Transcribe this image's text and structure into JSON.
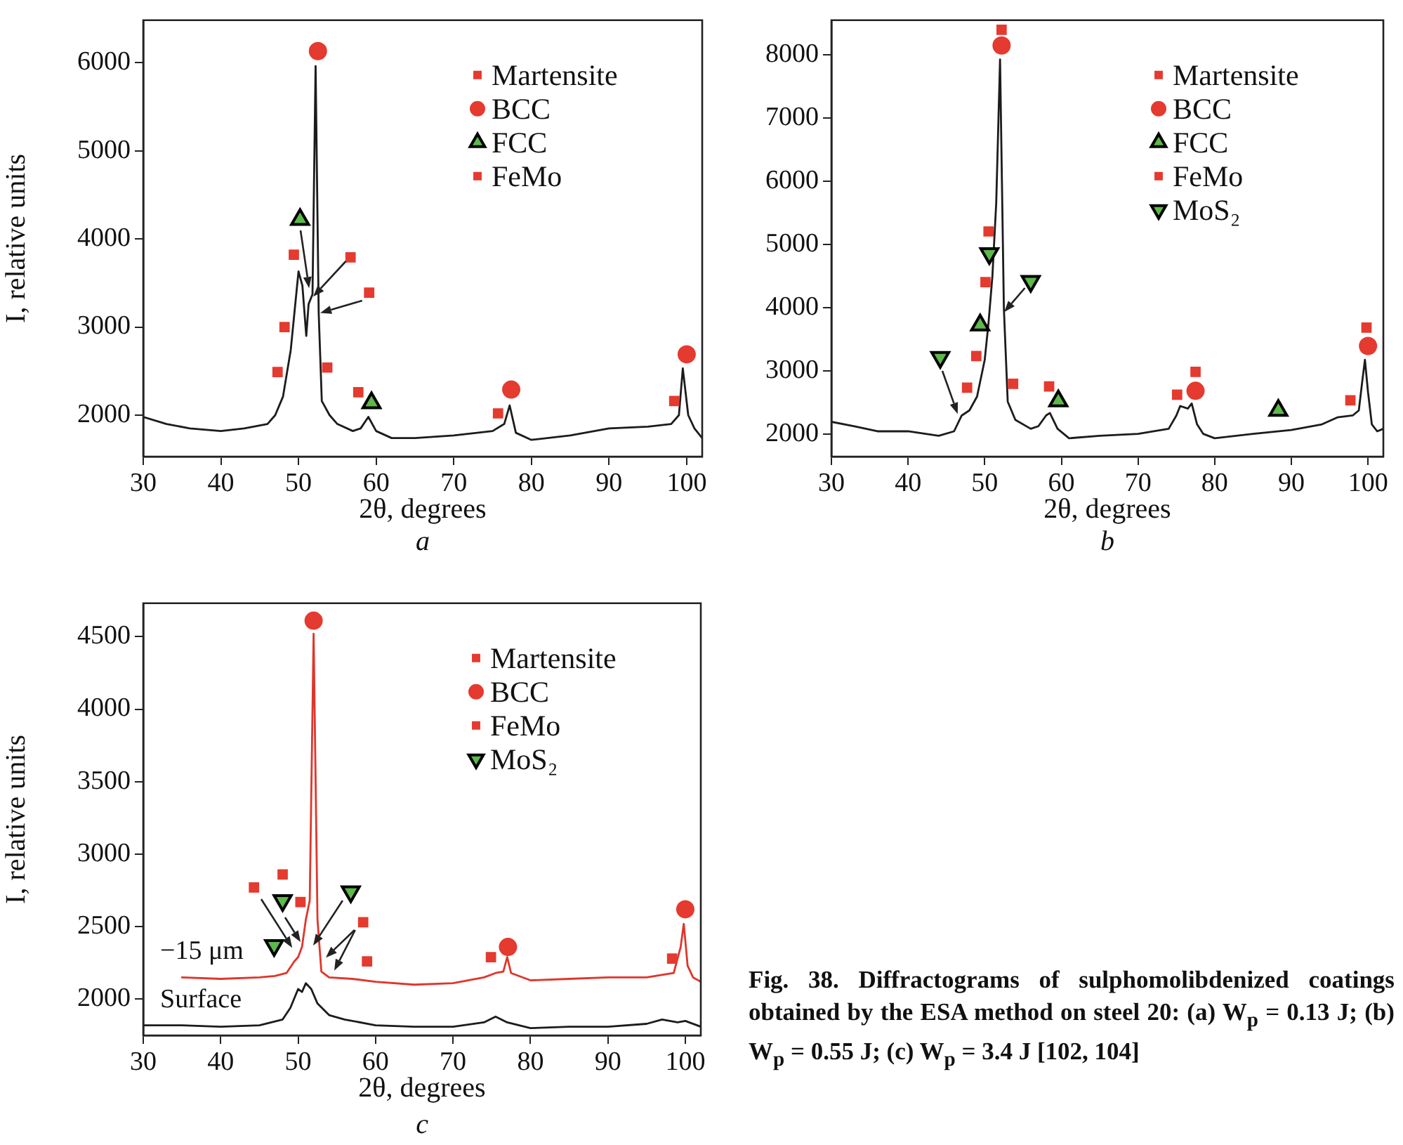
{
  "chart_data": [
    {
      "type": "line",
      "xlabel": "2θ, degrees",
      "ylabel": "I, relative units",
      "annotations": [
        "a"
      ],
      "xlim": [
        30,
        102
      ],
      "xticks": [
        30,
        40,
        50,
        60,
        70,
        80,
        90,
        100
      ],
      "ylim": [
        1530,
        6480
      ],
      "yticks": [
        2000,
        3000,
        4000,
        5000,
        6000
      ],
      "legend": "top right",
      "series": [
        {
          "type": "line",
          "color": "#1c1c1c",
          "x": [
            30,
            33,
            36,
            40,
            43,
            46,
            47,
            48,
            49,
            50,
            50.5,
            51,
            51.3,
            51.8,
            52.2,
            52.6,
            53,
            54,
            55,
            57,
            58,
            59,
            60,
            62,
            65,
            70,
            75,
            76.5,
            77.2,
            78,
            80,
            85,
            90,
            95,
            98,
            99,
            99.5,
            100.2,
            101,
            102
          ],
          "values": [
            1980,
            1900,
            1850,
            1820,
            1850,
            1900,
            2000,
            2210,
            2740,
            3630,
            3470,
            2900,
            3260,
            3370,
            5960,
            3160,
            2160,
            2000,
            1900,
            1820,
            1850,
            1980,
            1820,
            1740,
            1740,
            1770,
            1820,
            1900,
            2110,
            1800,
            1720,
            1770,
            1850,
            1870,
            1900,
            2000,
            2530,
            2000,
            1850,
            1740
          ]
        },
        {
          "type": "scatter",
          "name": "Martensite",
          "color": "#e53a2f",
          "marker": "square",
          "x": [
            56.7,
            75.7,
            98.4
          ],
          "values": [
            3790,
            2020,
            2160
          ]
        },
        {
          "type": "scatter",
          "name": "BCC",
          "color": "#e53a2f",
          "marker": "circle",
          "x": [
            52.5,
            77.4,
            100
          ],
          "values": [
            6130,
            2290,
            2690
          ]
        },
        {
          "type": "scatter",
          "name": "FCC",
          "color": "#5db94a",
          "marker": "triangle",
          "x": [
            50.2,
            59.4
          ],
          "values": [
            4220,
            2140
          ]
        },
        {
          "type": "scatter",
          "name": "FeMo",
          "color": "#e53a2f",
          "marker": "square",
          "x": [
            49.4,
            48.2,
            47.3,
            59.1,
            53.7,
            57.7
          ],
          "values": [
            3820,
            3000,
            2490,
            3390,
            2540,
            2260
          ]
        }
      ]
    },
    {
      "type": "line",
      "xlabel": "2θ, degrees",
      "annotations": [
        "b"
      ],
      "xlim": [
        30,
        102
      ],
      "xticks": [
        30,
        40,
        50,
        60,
        70,
        80,
        90,
        100
      ],
      "ylim": [
        1650,
        8550
      ],
      "yticks": [
        2000,
        3000,
        4000,
        5000,
        6000,
        7000,
        8000
      ],
      "legend": "top right",
      "series": [
        {
          "type": "line",
          "color": "#1c1c1c",
          "x": [
            30,
            33,
            36,
            40,
            44,
            46,
            47,
            48,
            49,
            50,
            50.5,
            51,
            51.5,
            52,
            52.5,
            53,
            54,
            56,
            57,
            58,
            58.5,
            59.5,
            61,
            65,
            70,
            74,
            75,
            75.5,
            76.5,
            77,
            77.7,
            78.5,
            80,
            85,
            90,
            94,
            96,
            98,
            98.8,
            99.3,
            99.6,
            100,
            100.5,
            101.2,
            102
          ],
          "values": [
            2200,
            2130,
            2050,
            2050,
            1980,
            2050,
            2300,
            2380,
            2600,
            3180,
            3770,
            4500,
            5660,
            7930,
            3990,
            2520,
            2230,
            2090,
            2130,
            2300,
            2340,
            2090,
            1940,
            1980,
            2010,
            2090,
            2300,
            2450,
            2410,
            2490,
            2160,
            2010,
            1940,
            2010,
            2070,
            2160,
            2270,
            2300,
            2380,
            2890,
            3180,
            2670,
            2160,
            2050,
            2090
          ]
        },
        {
          "type": "scatter",
          "name": "Martensite",
          "color": "#e53a2f",
          "marker": "square",
          "x": [
            52.2,
            50.5,
            75.1,
            77.5,
            97.7,
            99.8
          ],
          "values": [
            8400,
            5210,
            2630,
            2990,
            2540,
            3690
          ]
        },
        {
          "type": "scatter",
          "name": "BCC",
          "color": "#e53a2f",
          "marker": "circle",
          "x": [
            52.2,
            77.5,
            100
          ],
          "values": [
            8150,
            2690,
            3400
          ]
        },
        {
          "type": "scatter",
          "name": "FCC",
          "color": "#5db94a",
          "marker": "triangle",
          "x": [
            49.4,
            59.6,
            88.3
          ],
          "values": [
            3730,
            2530,
            2380
          ]
        },
        {
          "type": "scatter",
          "name": "FeMo",
          "color": "#e53a2f",
          "marker": "square",
          "x": [
            47.7,
            48.9,
            50.1,
            53.7,
            58.4
          ],
          "values": [
            2740,
            3240,
            4410,
            2800,
            2760
          ]
        },
        {
          "type": "scatter",
          "name": "MoS₂",
          "color": "#5db94a",
          "marker": "triangle-down",
          "x": [
            44.2,
            50.6,
            56.0
          ],
          "values": [
            3220,
            4860,
            4420
          ]
        }
      ]
    },
    {
      "type": "line",
      "xlabel": "2θ, degrees",
      "ylabel": "I, relative units",
      "annotations": [
        "c"
      ],
      "xlim": [
        30,
        102
      ],
      "xticks": [
        30,
        40,
        50,
        60,
        70,
        80,
        90,
        100
      ],
      "ylim": [
        1750,
        4730
      ],
      "yticks": [
        2000,
        2500,
        3000,
        3500,
        4000,
        4500
      ],
      "legend": "top right",
      "series": [
        {
          "type": "line",
          "name": "−15 μm",
          "color": "#e0352b",
          "x": [
            35,
            40,
            45,
            47,
            48.5,
            49.5,
            50,
            50.5,
            51,
            51.5,
            52,
            52.5,
            53,
            54,
            57,
            60,
            65,
            70,
            74,
            75.5,
            76.5,
            77,
            77.5,
            80,
            85,
            90,
            95,
            98.5,
            99.4,
            99.8,
            100.3,
            101,
            102
          ],
          "values": [
            2150,
            2140,
            2150,
            2160,
            2180,
            2260,
            2290,
            2360,
            2550,
            2680,
            4520,
            2550,
            2190,
            2150,
            2140,
            2120,
            2100,
            2110,
            2150,
            2180,
            2190,
            2290,
            2180,
            2130,
            2140,
            2150,
            2150,
            2180,
            2360,
            2520,
            2230,
            2150,
            2120
          ]
        },
        {
          "type": "line",
          "name": "Surface",
          "color": "#1c1c1c",
          "x": [
            30,
            35,
            40,
            45,
            48,
            49,
            50,
            50.5,
            51,
            51.7,
            52.5,
            54,
            56,
            60,
            65,
            70,
            74,
            75.5,
            77,
            80,
            85,
            90,
            95,
            97,
            99,
            100,
            102
          ],
          "values": [
            1820,
            1820,
            1810,
            1820,
            1860,
            1940,
            2070,
            2050,
            2110,
            2070,
            1970,
            1890,
            1860,
            1820,
            1810,
            1810,
            1840,
            1880,
            1840,
            1800,
            1810,
            1810,
            1830,
            1860,
            1840,
            1850,
            1810
          ]
        },
        {
          "type": "scatter",
          "name": "Martensite",
          "color": "#e53a2f",
          "marker": "square",
          "x": [
            50.3,
            74.9,
            98.3
          ],
          "values": [
            2670,
            2290,
            2280
          ]
        },
        {
          "type": "scatter",
          "name": "BCC",
          "color": "#e53a2f",
          "marker": "circle",
          "x": [
            52.0,
            77.1,
            100
          ],
          "values": [
            4610,
            2360,
            2620
          ]
        },
        {
          "type": "scatter",
          "name": "FeMo",
          "color": "#e53a2f",
          "marker": "square",
          "x": [
            44.3,
            48.0,
            58.4,
            58.9
          ],
          "values": [
            2770,
            2860,
            2530,
            2260
          ]
        },
        {
          "type": "scatter",
          "name": "MoS₂",
          "color": "#5db94a",
          "marker": "triangle-down",
          "x": [
            48.0,
            46.9,
            56.8
          ],
          "values": [
            2680,
            2370,
            2740
          ]
        }
      ]
    },
    {
      "type": "other",
      "annotations": [
        "Fig. 38. Diffractograms of sulphomolibdenized coatings obtained by the ESA method on steel 20: (a) W$_{p}$ = 0.13 J; (b) W$_{p}$ = 0.55 J; (c) W$_{p}$ = 3.4 J [102, 104]"
      ]
    }
  ]
}
